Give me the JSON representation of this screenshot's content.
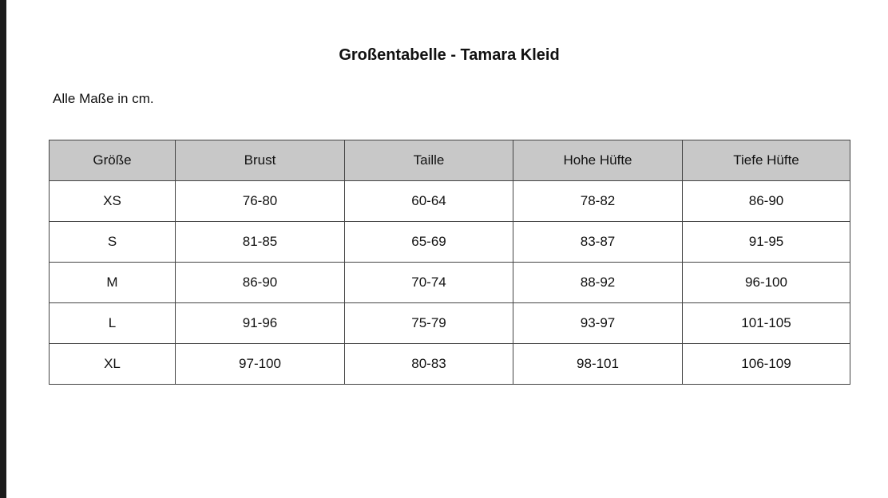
{
  "title": "Großentabelle - Tamara Kleid",
  "note": "Alle Maße in cm.",
  "table": {
    "headers": [
      "Größe",
      "Brust",
      "Taille",
      "Hohe Hüfte",
      "Tiefe Hüfte"
    ],
    "rows": [
      [
        "XS",
        "76-80",
        "60-64",
        "78-82",
        "86-90"
      ],
      [
        "S",
        "81-85",
        "65-69",
        "83-87",
        "91-95"
      ],
      [
        "M",
        "86-90",
        "70-74",
        "88-92",
        "96-100"
      ],
      [
        "L",
        "91-96",
        "75-79",
        "93-97",
        "101-105"
      ],
      [
        "XL",
        "97-100",
        "80-83",
        "98-101",
        "106-109"
      ]
    ]
  }
}
